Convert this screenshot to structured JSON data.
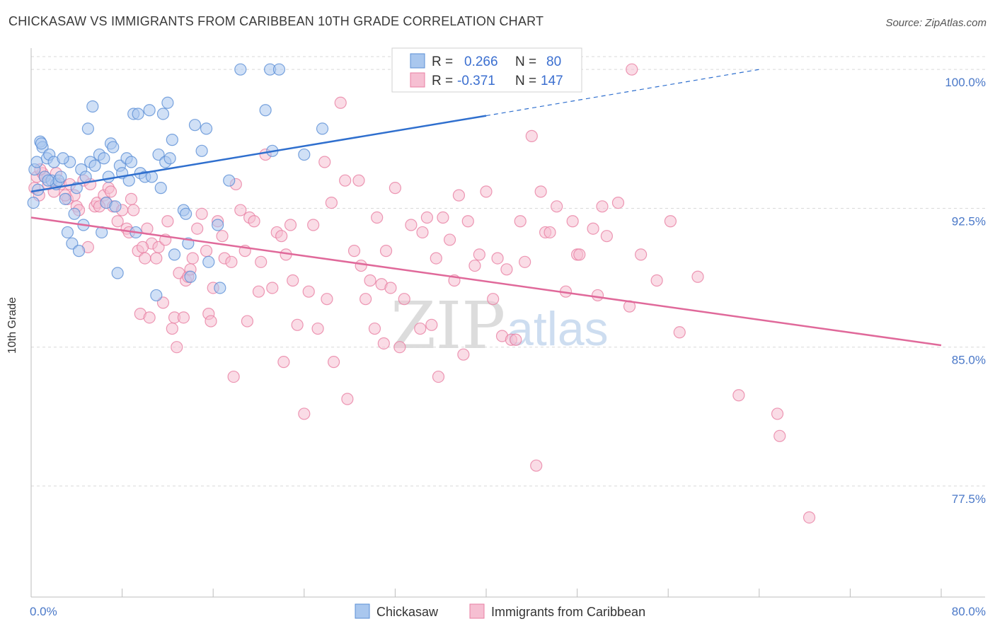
{
  "title": "CHICKASAW VS IMMIGRANTS FROM CARIBBEAN 10TH GRADE CORRELATION CHART",
  "source": "Source: ZipAtlas.com",
  "watermark": {
    "zip": "ZIP",
    "atlas": "atlas"
  },
  "colors": {
    "blue_fill": "#a9c7ee",
    "blue_stroke": "#5b8fd6",
    "blue_line": "#2f6fce",
    "pink_fill": "#f6bfd2",
    "pink_stroke": "#e87fa3",
    "pink_line": "#e0699a",
    "tick_text": "#4a78c8",
    "grid": "#d9d9d9"
  },
  "legend_box": {
    "rows": [
      {
        "r_label": "R =",
        "r_value": "0.266",
        "n_label": "N =",
        "n_value": "80"
      },
      {
        "r_label": "R =",
        "r_value": "-0.371",
        "n_label": "N =",
        "n_value": "147"
      }
    ]
  },
  "chart_data": {
    "type": "scatter",
    "title": "CHICKASAW VS IMMIGRANTS FROM CARIBBEAN 10TH GRADE CORRELATION CHART",
    "xlabel": "",
    "ylabel": "10th Grade",
    "xlim": [
      0,
      80
    ],
    "ylim": [
      71.5,
      101
    ],
    "x_tick_labels": [
      "0.0%",
      "80.0%"
    ],
    "y_ticks": [
      100.0,
      92.5,
      85.0,
      77.5
    ],
    "y_tick_labels": [
      "100.0%",
      "92.5%",
      "85.0%",
      "77.5%"
    ],
    "grid": "horizontal dashed",
    "legend_position": "bottom",
    "series": [
      {
        "name": "Chickasaw",
        "r": 0.266,
        "n": 80,
        "trend": {
          "x0": 0,
          "y0": 93.4,
          "x1": 40,
          "y1": 97.5,
          "dashed_to_x": 64,
          "dashed_to_y": 100.0
        },
        "points": [
          [
            0.2,
            92.8
          ],
          [
            0.3,
            94.6
          ],
          [
            0.5,
            95.0
          ],
          [
            0.6,
            93.5
          ],
          [
            0.8,
            96.1
          ],
          [
            1.0,
            95.8
          ],
          [
            1.2,
            94.2
          ],
          [
            1.4,
            95.2
          ],
          [
            1.6,
            95.4
          ],
          [
            1.8,
            94.0
          ],
          [
            2.0,
            95.0
          ],
          [
            2.2,
            93.8
          ],
          [
            2.4,
            94.0
          ],
          [
            2.6,
            94.2
          ],
          [
            3.0,
            93.0
          ],
          [
            3.2,
            91.2
          ],
          [
            3.4,
            95.0
          ],
          [
            3.6,
            90.6
          ],
          [
            3.8,
            92.2
          ],
          [
            4.0,
            93.6
          ],
          [
            4.2,
            90.2
          ],
          [
            4.4,
            94.6
          ],
          [
            4.6,
            91.6
          ],
          [
            4.8,
            94.2
          ],
          [
            5.0,
            96.8
          ],
          [
            5.2,
            95.0
          ],
          [
            5.4,
            98.0
          ],
          [
            5.6,
            94.8
          ],
          [
            6.0,
            95.4
          ],
          [
            6.2,
            91.2
          ],
          [
            6.4,
            95.2
          ],
          [
            6.6,
            92.8
          ],
          [
            6.8,
            94.2
          ],
          [
            7.0,
            96.0
          ],
          [
            7.2,
            95.8
          ],
          [
            7.4,
            92.6
          ],
          [
            7.6,
            89.0
          ],
          [
            7.8,
            94.8
          ],
          [
            8.0,
            94.4
          ],
          [
            8.4,
            95.2
          ],
          [
            8.6,
            94.0
          ],
          [
            8.8,
            95.0
          ],
          [
            9.0,
            97.6
          ],
          [
            9.2,
            91.2
          ],
          [
            9.4,
            97.6
          ],
          [
            9.6,
            94.4
          ],
          [
            10.0,
            94.2
          ],
          [
            10.4,
            97.8
          ],
          [
            10.6,
            94.2
          ],
          [
            11.0,
            87.8
          ],
          [
            11.2,
            95.4
          ],
          [
            11.4,
            93.6
          ],
          [
            11.6,
            97.6
          ],
          [
            11.8,
            95.0
          ],
          [
            12.0,
            98.2
          ],
          [
            12.2,
            95.2
          ],
          [
            12.4,
            96.2
          ],
          [
            12.6,
            90.0
          ],
          [
            13.4,
            92.4
          ],
          [
            13.6,
            92.2
          ],
          [
            13.8,
            90.6
          ],
          [
            14.0,
            88.8
          ],
          [
            14.4,
            97.0
          ],
          [
            15.0,
            95.6
          ],
          [
            15.4,
            96.8
          ],
          [
            15.6,
            89.6
          ],
          [
            16.4,
            91.6
          ],
          [
            16.6,
            88.2
          ],
          [
            17.4,
            94.0
          ],
          [
            18.4,
            100.0
          ],
          [
            20.6,
            97.8
          ],
          [
            21.0,
            100.0
          ],
          [
            21.2,
            95.6
          ],
          [
            21.8,
            100.0
          ],
          [
            24.0,
            95.4
          ],
          [
            25.6,
            96.8
          ],
          [
            38.8,
            100.0
          ],
          [
            0.9,
            96.0
          ],
          [
            1.5,
            94.0
          ],
          [
            2.8,
            95.2
          ]
        ]
      },
      {
        "name": "Immigrants from Caribbean",
        "r": -0.371,
        "n": 147,
        "trend": {
          "x0": 0,
          "y0": 92.0,
          "x1": 80,
          "y1": 85.1
        },
        "points": [
          [
            0.3,
            93.6
          ],
          [
            0.5,
            94.2
          ],
          [
            0.7,
            93.2
          ],
          [
            1.0,
            94.4
          ],
          [
            1.2,
            94.2
          ],
          [
            1.5,
            93.8
          ],
          [
            2.2,
            94.4
          ],
          [
            2.6,
            93.8
          ],
          [
            3.2,
            93.0
          ],
          [
            3.4,
            93.8
          ],
          [
            3.8,
            93.2
          ],
          [
            4.0,
            92.6
          ],
          [
            4.2,
            92.4
          ],
          [
            4.6,
            94.0
          ],
          [
            5.0,
            90.4
          ],
          [
            5.2,
            93.8
          ],
          [
            5.6,
            92.6
          ],
          [
            5.8,
            92.8
          ],
          [
            6.4,
            93.2
          ],
          [
            6.6,
            92.8
          ],
          [
            6.8,
            93.6
          ],
          [
            7.0,
            93.4
          ],
          [
            7.2,
            92.6
          ],
          [
            7.6,
            91.8
          ],
          [
            8.0,
            92.4
          ],
          [
            8.4,
            91.4
          ],
          [
            8.6,
            91.2
          ],
          [
            8.8,
            93.0
          ],
          [
            9.0,
            92.4
          ],
          [
            9.4,
            90.2
          ],
          [
            9.6,
            86.8
          ],
          [
            10.0,
            89.8
          ],
          [
            10.2,
            91.4
          ],
          [
            10.4,
            86.6
          ],
          [
            10.6,
            90.6
          ],
          [
            11.0,
            89.8
          ],
          [
            11.2,
            90.4
          ],
          [
            11.6,
            87.4
          ],
          [
            11.8,
            90.8
          ],
          [
            12.0,
            91.8
          ],
          [
            12.4,
            86.0
          ],
          [
            12.6,
            86.6
          ],
          [
            12.8,
            85.0
          ],
          [
            13.0,
            89.0
          ],
          [
            13.4,
            86.6
          ],
          [
            13.6,
            88.6
          ],
          [
            13.8,
            88.8
          ],
          [
            14.2,
            89.8
          ],
          [
            14.6,
            91.4
          ],
          [
            15.0,
            92.2
          ],
          [
            15.4,
            90.2
          ],
          [
            15.6,
            86.8
          ],
          [
            15.8,
            86.4
          ],
          [
            16.0,
            88.2
          ],
          [
            16.4,
            91.8
          ],
          [
            16.8,
            91.0
          ],
          [
            17.0,
            89.8
          ],
          [
            17.6,
            89.6
          ],
          [
            17.8,
            83.4
          ],
          [
            18.0,
            93.8
          ],
          [
            18.4,
            92.4
          ],
          [
            18.8,
            90.2
          ],
          [
            19.0,
            86.4
          ],
          [
            19.2,
            92.0
          ],
          [
            19.6,
            91.8
          ],
          [
            20.0,
            88.0
          ],
          [
            20.2,
            89.6
          ],
          [
            20.6,
            95.4
          ],
          [
            21.2,
            88.2
          ],
          [
            21.6,
            91.2
          ],
          [
            22.0,
            91.0
          ],
          [
            22.2,
            84.2
          ],
          [
            22.4,
            90.0
          ],
          [
            22.8,
            91.6
          ],
          [
            23.0,
            88.6
          ],
          [
            23.4,
            86.2
          ],
          [
            24.0,
            81.4
          ],
          [
            24.4,
            88.0
          ],
          [
            24.8,
            91.6
          ],
          [
            25.2,
            86.0
          ],
          [
            25.8,
            95.0
          ],
          [
            26.0,
            87.6
          ],
          [
            26.4,
            92.8
          ],
          [
            26.6,
            84.2
          ],
          [
            27.2,
            98.2
          ],
          [
            27.6,
            94.0
          ],
          [
            27.8,
            82.2
          ],
          [
            28.4,
            90.2
          ],
          [
            28.8,
            94.0
          ],
          [
            29.0,
            89.4
          ],
          [
            29.4,
            87.6
          ],
          [
            29.8,
            88.6
          ],
          [
            30.2,
            86.0
          ],
          [
            30.4,
            92.0
          ],
          [
            30.8,
            88.4
          ],
          [
            31.0,
            85.2
          ],
          [
            31.2,
            90.2
          ],
          [
            31.6,
            88.2
          ],
          [
            32.0,
            93.6
          ],
          [
            32.4,
            85.0
          ],
          [
            32.8,
            87.6
          ],
          [
            33.4,
            91.6
          ],
          [
            34.2,
            86.0
          ],
          [
            34.4,
            91.2
          ],
          [
            34.8,
            92.0
          ],
          [
            35.2,
            86.2
          ],
          [
            35.6,
            89.8
          ],
          [
            35.8,
            83.4
          ],
          [
            36.2,
            92.0
          ],
          [
            36.8,
            90.8
          ],
          [
            37.2,
            88.6
          ],
          [
            37.6,
            93.2
          ],
          [
            38.0,
            84.6
          ],
          [
            38.4,
            91.8
          ],
          [
            39.0,
            89.4
          ],
          [
            39.4,
            90.0
          ],
          [
            40.0,
            93.4
          ],
          [
            40.6,
            87.6
          ],
          [
            41.0,
            89.8
          ],
          [
            41.4,
            85.6
          ],
          [
            41.8,
            89.2
          ],
          [
            42.2,
            85.4
          ],
          [
            42.6,
            85.4
          ],
          [
            43.0,
            91.8
          ],
          [
            43.4,
            89.6
          ],
          [
            44.0,
            96.4
          ],
          [
            44.4,
            78.6
          ],
          [
            44.8,
            93.4
          ],
          [
            45.2,
            91.2
          ],
          [
            45.6,
            91.2
          ],
          [
            46.2,
            92.6
          ],
          [
            47.0,
            88.0
          ],
          [
            47.6,
            91.8
          ],
          [
            48.0,
            90.0
          ],
          [
            48.2,
            90.0
          ],
          [
            49.4,
            91.4
          ],
          [
            49.8,
            87.8
          ],
          [
            50.2,
            92.6
          ],
          [
            50.6,
            91.0
          ],
          [
            51.6,
            92.8
          ],
          [
            52.6,
            87.2
          ],
          [
            52.8,
            100.0
          ],
          [
            53.6,
            90.0
          ],
          [
            55.0,
            88.6
          ],
          [
            56.2,
            91.8
          ],
          [
            57.0,
            85.8
          ],
          [
            58.6,
            88.8
          ],
          [
            62.2,
            82.4
          ],
          [
            65.6,
            81.4
          ],
          [
            65.8,
            80.2
          ],
          [
            68.4,
            75.8
          ],
          [
            0.8,
            94.6
          ],
          [
            2.0,
            93.4
          ],
          [
            3.0,
            93.2
          ],
          [
            6.0,
            92.6
          ],
          [
            9.8,
            90.4
          ],
          [
            14.0,
            89.2
          ]
        ]
      }
    ]
  }
}
